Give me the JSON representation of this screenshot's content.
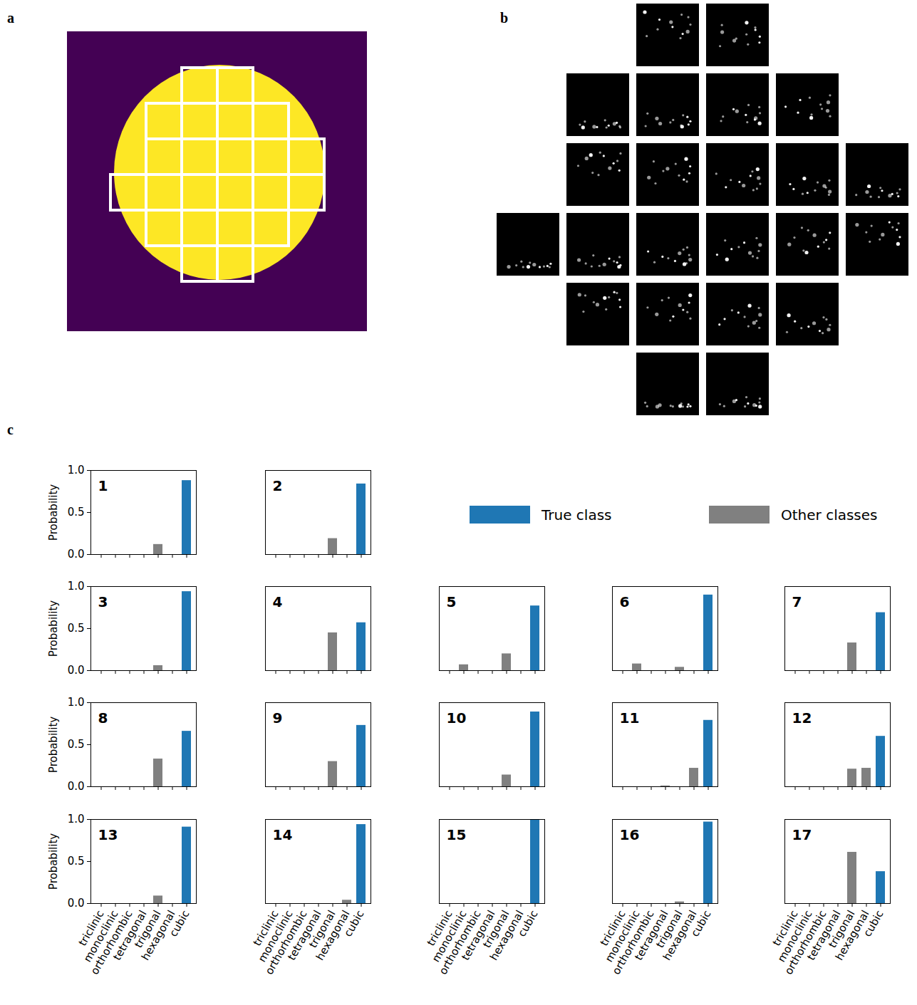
{
  "panel_labels": [
    "a",
    "b",
    "c"
  ],
  "legend_items": [
    {
      "name": "True class",
      "color": "#1f77b4"
    },
    {
      "name": "Other classes",
      "color": "#808080"
    }
  ],
  "chart_data": [
    {
      "type": "bar",
      "title": "1",
      "ylabel": "Probability",
      "tick_labels": "y",
      "categories": [
        "triclinic",
        "monoclinic",
        "orthorhombic",
        "tetragonal",
        "trigonal",
        "hexagonal",
        "cubic"
      ],
      "values": [
        0,
        0,
        0,
        0,
        0.12,
        0,
        0.88
      ],
      "colors": [
        "#808080",
        "#808080",
        "#808080",
        "#808080",
        "#808080",
        "#808080",
        "#1f77b4"
      ],
      "ylim": [
        0,
        1
      ],
      "yticks": [
        {
          "value": 0,
          "label": "0.0"
        },
        {
          "value": 0.5,
          "label": "0.5"
        },
        {
          "value": 1,
          "label": "1.0"
        }
      ]
    },
    {
      "type": "bar",
      "title": "2",
      "tick_labels": false,
      "categories": [
        "triclinic",
        "monoclinic",
        "orthorhombic",
        "tetragonal",
        "trigonal",
        "hexagonal",
        "cubic"
      ],
      "values": [
        0,
        0,
        0,
        0,
        0.19,
        0,
        0.84
      ],
      "colors": [
        "#808080",
        "#808080",
        "#808080",
        "#808080",
        "#808080",
        "#808080",
        "#1f77b4"
      ],
      "ylim": [
        0,
        1
      ],
      "yticks": [
        {
          "value": 0,
          "label": "0.0"
        },
        {
          "value": 0.5,
          "label": "0.5"
        },
        {
          "value": 1,
          "label": "1.0"
        }
      ]
    },
    {
      "type": "bar",
      "title": "3",
      "ylabel": "Probability",
      "tick_labels": "y",
      "categories": [
        "triclinic",
        "monoclinic",
        "orthorhombic",
        "tetragonal",
        "trigonal",
        "hexagonal",
        "cubic"
      ],
      "values": [
        0,
        0,
        0,
        0,
        0.06,
        0,
        0.94
      ],
      "colors": [
        "#808080",
        "#808080",
        "#808080",
        "#808080",
        "#808080",
        "#808080",
        "#1f77b4"
      ],
      "ylim": [
        0,
        1
      ],
      "yticks": [
        {
          "value": 0,
          "label": "0.0"
        },
        {
          "value": 0.5,
          "label": "0.5"
        },
        {
          "value": 1,
          "label": "1.0"
        }
      ]
    },
    {
      "type": "bar",
      "title": "4",
      "tick_labels": false,
      "categories": [
        "triclinic",
        "monoclinic",
        "orthorhombic",
        "tetragonal",
        "trigonal",
        "hexagonal",
        "cubic"
      ],
      "values": [
        0,
        0,
        0,
        0,
        0.45,
        0,
        0.57
      ],
      "colors": [
        "#808080",
        "#808080",
        "#808080",
        "#808080",
        "#808080",
        "#808080",
        "#1f77b4"
      ],
      "ylim": [
        0,
        1
      ],
      "yticks": [
        {
          "value": 0,
          "label": "0.0"
        },
        {
          "value": 0.5,
          "label": "0.5"
        },
        {
          "value": 1,
          "label": "1.0"
        }
      ]
    },
    {
      "type": "bar",
      "title": "5",
      "tick_labels": false,
      "categories": [
        "triclinic",
        "monoclinic",
        "orthorhombic",
        "tetragonal",
        "trigonal",
        "hexagonal",
        "cubic"
      ],
      "values": [
        0,
        0.07,
        0,
        0,
        0.2,
        0,
        0.77
      ],
      "colors": [
        "#808080",
        "#808080",
        "#808080",
        "#808080",
        "#808080",
        "#808080",
        "#1f77b4"
      ],
      "ylim": [
        0,
        1
      ],
      "yticks": [
        {
          "value": 0,
          "label": "0.0"
        },
        {
          "value": 0.5,
          "label": "0.5"
        },
        {
          "value": 1,
          "label": "1.0"
        }
      ]
    },
    {
      "type": "bar",
      "title": "6",
      "tick_labels": false,
      "categories": [
        "triclinic",
        "monoclinic",
        "orthorhombic",
        "tetragonal",
        "trigonal",
        "hexagonal",
        "cubic"
      ],
      "values": [
        0,
        0.08,
        0,
        0,
        0.04,
        0,
        0.9
      ],
      "colors": [
        "#808080",
        "#808080",
        "#808080",
        "#808080",
        "#808080",
        "#808080",
        "#1f77b4"
      ],
      "ylim": [
        0,
        1
      ],
      "yticks": [
        {
          "value": 0,
          "label": "0.0"
        },
        {
          "value": 0.5,
          "label": "0.5"
        },
        {
          "value": 1,
          "label": "1.0"
        }
      ]
    },
    {
      "type": "bar",
      "title": "7",
      "tick_labels": false,
      "categories": [
        "triclinic",
        "monoclinic",
        "orthorhombic",
        "tetragonal",
        "trigonal",
        "hexagonal",
        "cubic"
      ],
      "values": [
        0,
        0,
        0,
        0,
        0.33,
        0,
        0.69
      ],
      "colors": [
        "#808080",
        "#808080",
        "#808080",
        "#808080",
        "#808080",
        "#808080",
        "#1f77b4"
      ],
      "ylim": [
        0,
        1
      ],
      "yticks": [
        {
          "value": 0,
          "label": "0.0"
        },
        {
          "value": 0.5,
          "label": "0.5"
        },
        {
          "value": 1,
          "label": "1.0"
        }
      ]
    },
    {
      "type": "bar",
      "title": "8",
      "ylabel": "Probability",
      "tick_labels": "y",
      "categories": [
        "triclinic",
        "monoclinic",
        "orthorhombic",
        "tetragonal",
        "trigonal",
        "hexagonal",
        "cubic"
      ],
      "values": [
        0,
        0,
        0,
        0,
        0.33,
        0,
        0.66
      ],
      "colors": [
        "#808080",
        "#808080",
        "#808080",
        "#808080",
        "#808080",
        "#808080",
        "#1f77b4"
      ],
      "ylim": [
        0,
        1
      ],
      "yticks": [
        {
          "value": 0,
          "label": "0.0"
        },
        {
          "value": 0.5,
          "label": "0.5"
        },
        {
          "value": 1,
          "label": "1.0"
        }
      ]
    },
    {
      "type": "bar",
      "title": "9",
      "tick_labels": false,
      "categories": [
        "triclinic",
        "monoclinic",
        "orthorhombic",
        "tetragonal",
        "trigonal",
        "hexagonal",
        "cubic"
      ],
      "values": [
        0,
        0,
        0,
        0,
        0.3,
        0,
        0.73
      ],
      "colors": [
        "#808080",
        "#808080",
        "#808080",
        "#808080",
        "#808080",
        "#808080",
        "#1f77b4"
      ],
      "ylim": [
        0,
        1
      ],
      "yticks": [
        {
          "value": 0,
          "label": "0.0"
        },
        {
          "value": 0.5,
          "label": "0.5"
        },
        {
          "value": 1,
          "label": "1.0"
        }
      ]
    },
    {
      "type": "bar",
      "title": "10",
      "tick_labels": false,
      "categories": [
        "triclinic",
        "monoclinic",
        "orthorhombic",
        "tetragonal",
        "trigonal",
        "hexagonal",
        "cubic"
      ],
      "values": [
        0,
        0,
        0,
        0,
        0.14,
        0,
        0.89
      ],
      "colors": [
        "#808080",
        "#808080",
        "#808080",
        "#808080",
        "#808080",
        "#808080",
        "#1f77b4"
      ],
      "ylim": [
        0,
        1
      ],
      "yticks": [
        {
          "value": 0,
          "label": "0.0"
        },
        {
          "value": 0.5,
          "label": "0.5"
        },
        {
          "value": 1,
          "label": "1.0"
        }
      ]
    },
    {
      "type": "bar",
      "title": "11",
      "tick_labels": false,
      "categories": [
        "triclinic",
        "monoclinic",
        "orthorhombic",
        "tetragonal",
        "trigonal",
        "hexagonal",
        "cubic"
      ],
      "values": [
        0,
        0,
        0,
        0.01,
        0,
        0.22,
        0.79
      ],
      "colors": [
        "#808080",
        "#808080",
        "#808080",
        "#808080",
        "#808080",
        "#808080",
        "#1f77b4"
      ],
      "ylim": [
        0,
        1
      ],
      "yticks": [
        {
          "value": 0,
          "label": "0.0"
        },
        {
          "value": 0.5,
          "label": "0.5"
        },
        {
          "value": 1,
          "label": "1.0"
        }
      ]
    },
    {
      "type": "bar",
      "title": "12",
      "tick_labels": false,
      "categories": [
        "triclinic",
        "monoclinic",
        "orthorhombic",
        "tetragonal",
        "trigonal",
        "hexagonal",
        "cubic"
      ],
      "values": [
        0,
        0,
        0,
        0,
        0.21,
        0.22,
        0.6
      ],
      "colors": [
        "#808080",
        "#808080",
        "#808080",
        "#808080",
        "#808080",
        "#808080",
        "#1f77b4"
      ],
      "ylim": [
        0,
        1
      ],
      "yticks": [
        {
          "value": 0,
          "label": "0.0"
        },
        {
          "value": 0.5,
          "label": "0.5"
        },
        {
          "value": 1,
          "label": "1.0"
        }
      ]
    },
    {
      "type": "bar",
      "title": "13",
      "ylabel": "Probability",
      "tick_labels": true,
      "categories": [
        "triclinic",
        "monoclinic",
        "orthorhombic",
        "tetragonal",
        "trigonal",
        "hexagonal",
        "cubic"
      ],
      "values": [
        0,
        0,
        0,
        0,
        0.09,
        0,
        0.91
      ],
      "colors": [
        "#808080",
        "#808080",
        "#808080",
        "#808080",
        "#808080",
        "#808080",
        "#1f77b4"
      ],
      "ylim": [
        0,
        1
      ],
      "yticks": [
        {
          "value": 0,
          "label": "0.0"
        },
        {
          "value": 0.5,
          "label": "0.5"
        },
        {
          "value": 1,
          "label": "1.0"
        }
      ]
    },
    {
      "type": "bar",
      "title": "14",
      "tick_labels": "x",
      "categories": [
        "triclinic",
        "monoclinic",
        "orthorhombic",
        "tetragonal",
        "trigonal",
        "hexagonal",
        "cubic"
      ],
      "values": [
        0,
        0,
        0,
        0,
        0,
        0.04,
        0.94
      ],
      "colors": [
        "#808080",
        "#808080",
        "#808080",
        "#808080",
        "#808080",
        "#808080",
        "#1f77b4"
      ],
      "ylim": [
        0,
        1
      ],
      "yticks": [
        {
          "value": 0,
          "label": "0.0"
        },
        {
          "value": 0.5,
          "label": "0.5"
        },
        {
          "value": 1,
          "label": "1.0"
        }
      ]
    },
    {
      "type": "bar",
      "title": "15",
      "tick_labels": "x",
      "categories": [
        "triclinic",
        "monoclinic",
        "orthorhombic",
        "tetragonal",
        "trigonal",
        "hexagonal",
        "cubic"
      ],
      "values": [
        0,
        0,
        0,
        0,
        0,
        0,
        1.0
      ],
      "colors": [
        "#808080",
        "#808080",
        "#808080",
        "#808080",
        "#808080",
        "#808080",
        "#1f77b4"
      ],
      "ylim": [
        0,
        1
      ],
      "yticks": [
        {
          "value": 0,
          "label": "0.0"
        },
        {
          "value": 0.5,
          "label": "0.5"
        },
        {
          "value": 1,
          "label": "1.0"
        }
      ]
    },
    {
      "type": "bar",
      "title": "16",
      "tick_labels": "x",
      "categories": [
        "triclinic",
        "monoclinic",
        "orthorhombic",
        "tetragonal",
        "trigonal",
        "hexagonal",
        "cubic"
      ],
      "values": [
        0,
        0,
        0,
        0,
        0.02,
        0,
        0.97
      ],
      "colors": [
        "#808080",
        "#808080",
        "#808080",
        "#808080",
        "#808080",
        "#808080",
        "#1f77b4"
      ],
      "ylim": [
        0,
        1
      ],
      "yticks": [
        {
          "value": 0,
          "label": "0.0"
        },
        {
          "value": 0.5,
          "label": "0.5"
        },
        {
          "value": 1,
          "label": "1.0"
        }
      ]
    },
    {
      "type": "bar",
      "title": "17",
      "tick_labels": "x",
      "categories": [
        "triclinic",
        "monoclinic",
        "orthorhombic",
        "tetragonal",
        "trigonal",
        "hexagonal",
        "cubic"
      ],
      "values": [
        0,
        0,
        0,
        0,
        0.61,
        0,
        0.38
      ],
      "colors": [
        "#808080",
        "#808080",
        "#808080",
        "#808080",
        "#808080",
        "#808080",
        "#1f77b4"
      ],
      "ylim": [
        0,
        1
      ],
      "yticks": [
        {
          "value": 0,
          "label": "0.0"
        },
        {
          "value": 0.5,
          "label": "0.5"
        },
        {
          "value": 1,
          "label": "1.0"
        }
      ]
    }
  ]
}
